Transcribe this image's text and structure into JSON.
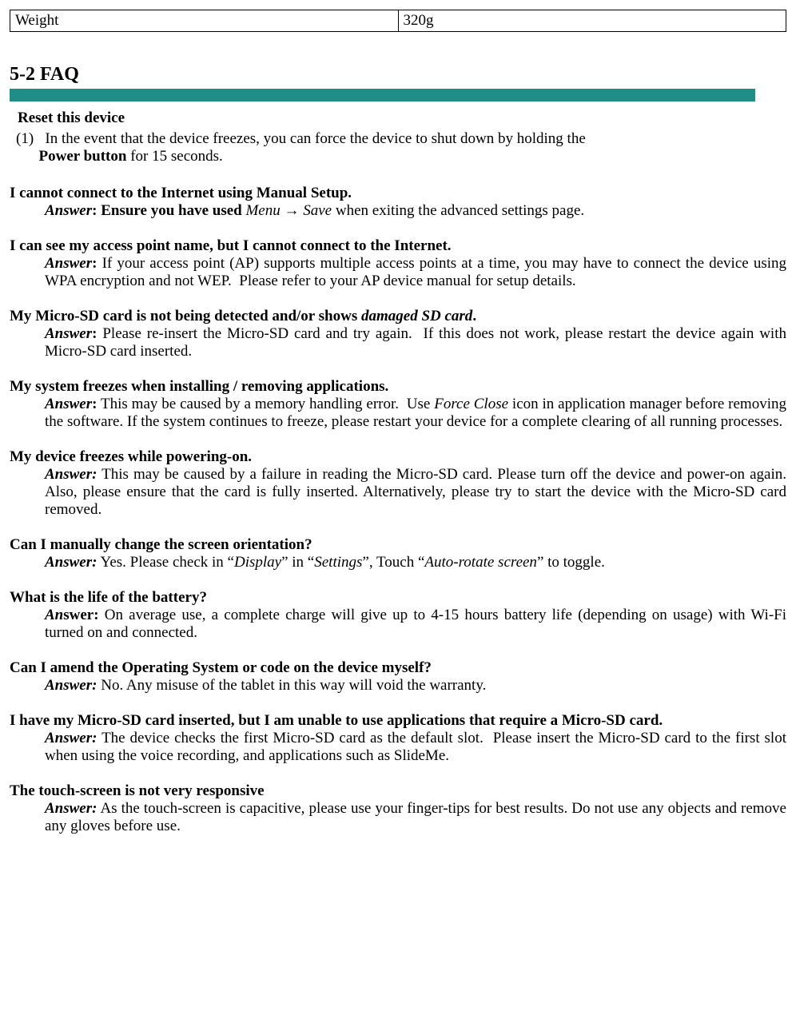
{
  "spec_table": {
    "label": "Weight",
    "value": "320g"
  },
  "section_title": "5-2 FAQ",
  "reset": {
    "title": "Reset this device",
    "num": "(1)",
    "text_a": "In the event that the device freezes, you can force the device to shut down by holding the ",
    "bold": "Power button",
    "text_b": " for 15 seconds."
  },
  "faq1": {
    "q": "I cannot connect to the Internet using Manual Setup.",
    "a1": "Answer",
    "a2": ": Ensure you have used ",
    "a3": "Menu → Save",
    "a4": " when exiting the advanced settings page."
  },
  "faq2": {
    "q": "I can see my access point name, but I cannot connect to the Internet.",
    "a1": "Answer",
    "a2": ": If your access point (AP) supports multiple access points at a time, you may have to connect the device using WPA encryption and not WEP.  Please refer to your AP device manual for setup details."
  },
  "faq3": {
    "q1": "My Micro-SD card is not being detected and/or shows ",
    "q2": "damaged SD card",
    "q3": ".",
    "a1": "Answer",
    "a2": ": Please re-insert the Micro-SD card and try again.  If this does not work, please restart the device again with Micro-SD card inserted."
  },
  "faq4": {
    "q": "My system freezes when installing / removing applications.",
    "a1": "Answer",
    "a2": ": This may be caused by a memory handling error.  Use ",
    "a3": "Force Close",
    "a4": " icon in application manager before removing the software.   If the system continues to freeze, please restart your device for a complete clearing of all running processes."
  },
  "faq5": {
    "q": "My device freezes while powering-on.",
    "a1": "Answer:",
    "a2": " This may be caused by a failure in reading the Micro-SD card.   Please turn off the device and power-on again. Also, please ensure that the card is fully inserted.   Alternatively, please try to start the device with the Micro-SD card removed."
  },
  "faq6": {
    "q": "Can I manually change the screen orientation?",
    "a1": "Answer:",
    "a2": " Yes. Please check in “",
    "a3": "Display",
    "a4": "” in “",
    "a5": "Settings",
    "a6": "”, Touch “",
    "a7": "Auto-rotate screen",
    "a8": "” to toggle."
  },
  "faq7": {
    "q": "What is the life of the battery?",
    "a1a": "An",
    "a1b": "swer:",
    "a2": " On average use, a complete charge will give up to 4-15 hours battery life (depending on usage) with Wi-Fi turned on and connected."
  },
  "faq8": {
    "q": "Can I amend the Operating System or code on the device myself?",
    "a1": "Answer:",
    "a2": " No.   Any misuse of the tablet in this way will void the warranty."
  },
  "faq9": {
    "q": "I have my Micro-SD card inserted, but I am unable to use applications that require a Micro-SD card.",
    "a1": "Answer:",
    "a2": " The device checks the first Micro-SD card as the default slot.  Please insert the Micro-SD card to the first slot when using the voice recording, and applications such as SlideMe."
  },
  "faq10": {
    "q": "The touch-screen is not very responsive",
    "a1": "Answer:",
    "a2": " As the touch-screen is capacitive, please use your finger-tips for best results. Do not use any objects and remove any gloves before use."
  }
}
